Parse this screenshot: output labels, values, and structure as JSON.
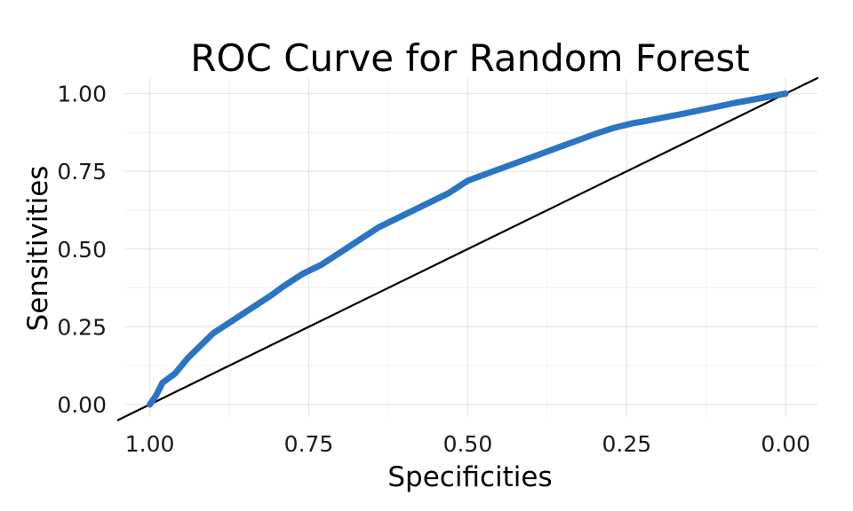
{
  "chart_data": {
    "type": "line",
    "title": "ROC Curve for Random Forest",
    "xlabel": "Specificities",
    "ylabel": "Sensitivities",
    "x_reversed": true,
    "xlim": [
      1.04,
      -0.05
    ],
    "ylim": [
      -0.04,
      1.05
    ],
    "x_ticks": [
      "1.00",
      "0.75",
      "0.50",
      "0.25",
      "0.00"
    ],
    "y_ticks": [
      "0.00",
      "0.25",
      "0.50",
      "0.75",
      "1.00"
    ],
    "grid": true,
    "legend": "none",
    "series": [
      {
        "color": "#2a74c4",
        "x": [
          1.0,
          0.99,
          0.98,
          0.96,
          0.94,
          0.92,
          0.9,
          0.87,
          0.84,
          0.81,
          0.79,
          0.76,
          0.73,
          0.7,
          0.67,
          0.64,
          0.6,
          0.56,
          0.53,
          0.5,
          0.46,
          0.42,
          0.38,
          0.34,
          0.3,
          0.27,
          0.24,
          0.225,
          0.15,
          0.08,
          0.0
        ],
        "y": [
          0.0,
          0.03,
          0.07,
          0.1,
          0.15,
          0.19,
          0.23,
          0.27,
          0.31,
          0.35,
          0.38,
          0.42,
          0.45,
          0.49,
          0.53,
          0.57,
          0.61,
          0.65,
          0.68,
          0.72,
          0.75,
          0.78,
          0.81,
          0.84,
          0.87,
          0.89,
          0.905,
          0.91,
          0.94,
          0.97,
          1.0
        ]
      },
      {
        "color": "#000000",
        "x": [
          1.05,
          -0.05
        ],
        "y": [
          -0.05,
          1.05
        ]
      }
    ]
  }
}
